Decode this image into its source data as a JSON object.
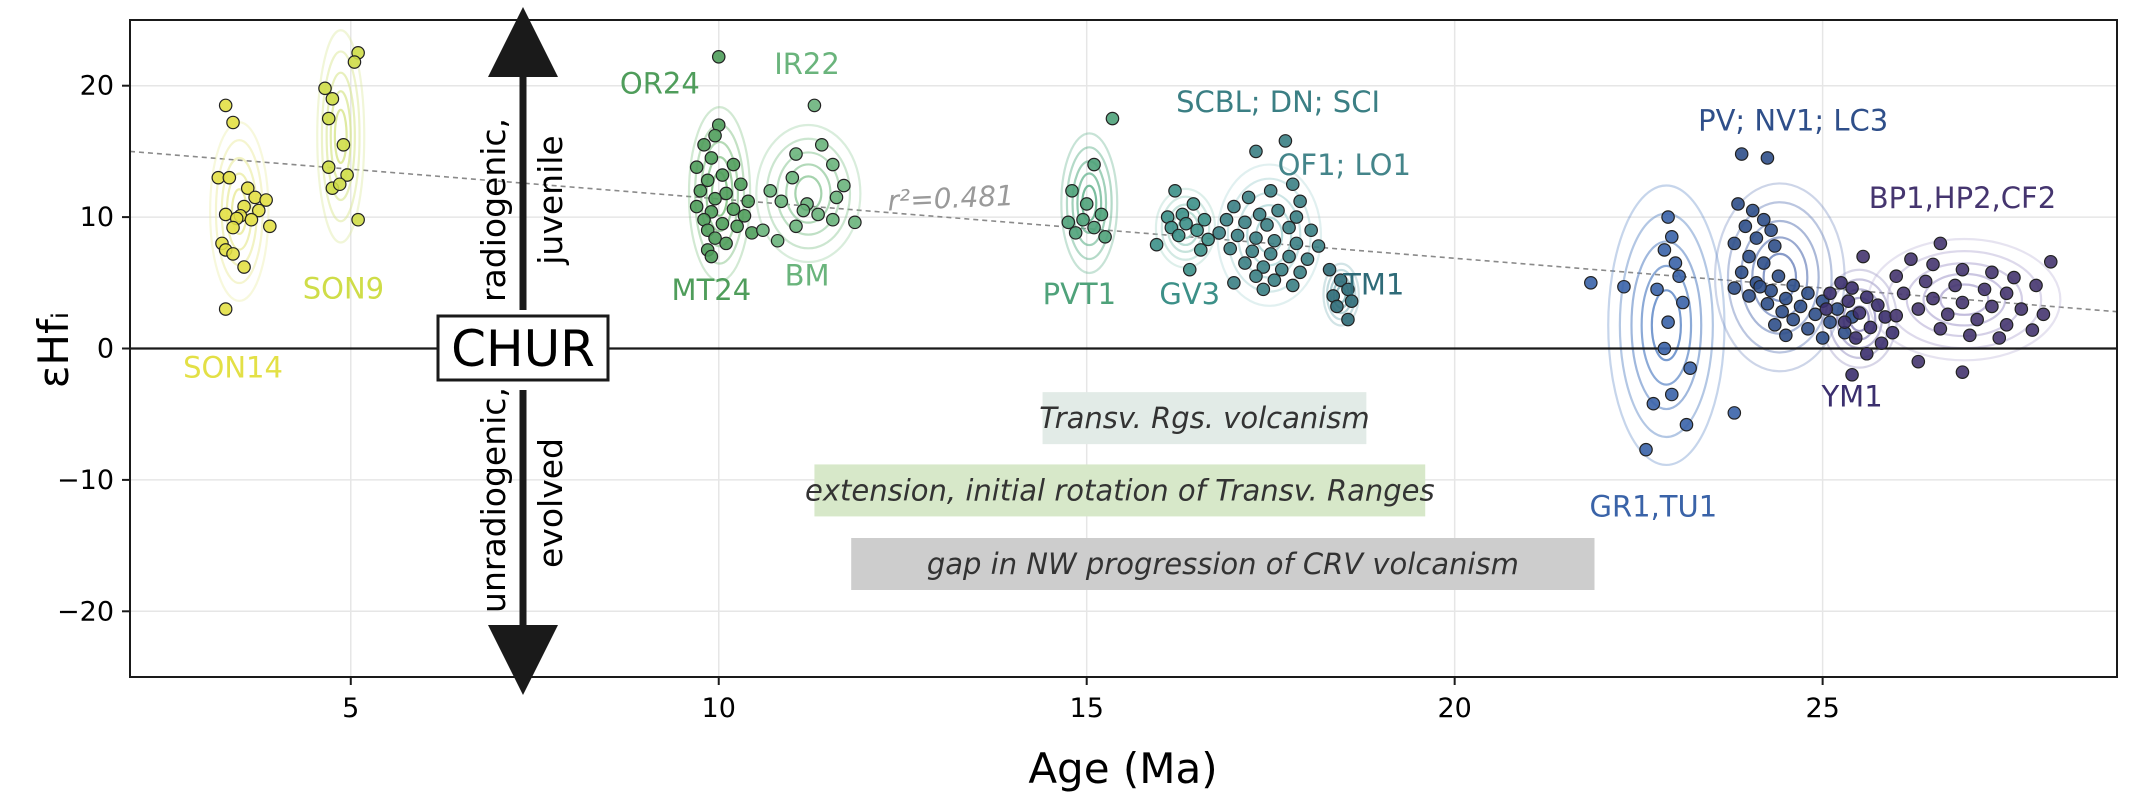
{
  "chart_data": {
    "type": "scatter",
    "xlabel": "Age (Ma)",
    "ylabel": "εHfᵢ",
    "xlim": [
      2,
      29
    ],
    "ylim": [
      -25,
      25
    ],
    "xticks": [
      5,
      10,
      15,
      20,
      25
    ],
    "yticks": [
      -20,
      -10,
      0,
      10,
      20
    ],
    "x_tick_labels": [
      "5",
      "10",
      "15",
      "20",
      "25"
    ],
    "y_tick_labels": [
      "−20",
      "−10",
      "0",
      "10",
      "20"
    ],
    "grid": true,
    "reference_line": {
      "label": "CHUR",
      "y": 0
    },
    "trend_line": {
      "label": "r²=0.481",
      "x": [
        2,
        29
      ],
      "y": [
        15.0,
        2.8
      ]
    },
    "arrow_labels": {
      "up_line1": "radiogenic,",
      "up_line2": "juvenile",
      "down_line1": "unradiogenic,",
      "down_line2": "evolved"
    },
    "annotations": [
      {
        "text": "Transv. Rgs. volcanism",
        "x_start": 14.4,
        "x_end": 18.8,
        "color": "#e2ebe7"
      },
      {
        "text": "extension, initial rotation of Transv. Ranges",
        "x_start": 11.3,
        "x_end": 19.6,
        "color": "#d7e8c9"
      },
      {
        "text": "gap in NW progression of CRV volcanism",
        "x_start": 11.8,
        "x_end": 21.9,
        "color": "#cdcdcd"
      }
    ],
    "series": [
      {
        "name": "SON14",
        "label_x": 3.4,
        "label_y": -2.2,
        "color": "#e3e046",
        "contour": "#e9ea9b",
        "points": [
          [
            3.3,
            18.5
          ],
          [
            3.4,
            17.2
          ],
          [
            3.2,
            13.0
          ],
          [
            3.35,
            13.0
          ],
          [
            3.6,
            12.2
          ],
          [
            3.7,
            11.5
          ],
          [
            3.85,
            11.3
          ],
          [
            3.55,
            10.8
          ],
          [
            3.75,
            10.5
          ],
          [
            3.3,
            10.2
          ],
          [
            3.5,
            10.1
          ],
          [
            3.45,
            9.9
          ],
          [
            3.65,
            9.8
          ],
          [
            3.9,
            9.3
          ],
          [
            3.4,
            9.2
          ],
          [
            3.25,
            8.0
          ],
          [
            3.3,
            7.5
          ],
          [
            3.4,
            7.2
          ],
          [
            3.55,
            6.2
          ],
          [
            3.3,
            3.0
          ]
        ]
      },
      {
        "name": "SON9",
        "label_x": 4.9,
        "label_y": 3.8,
        "color": "#cfdd48",
        "contour": "#d8e68e",
        "points": [
          [
            5.1,
            22.5
          ],
          [
            5.05,
            21.8
          ],
          [
            4.65,
            19.8
          ],
          [
            4.75,
            19.0
          ],
          [
            4.7,
            17.5
          ],
          [
            4.9,
            15.5
          ],
          [
            4.7,
            13.8
          ],
          [
            4.95,
            13.2
          ],
          [
            4.75,
            12.2
          ],
          [
            4.85,
            12.5
          ],
          [
            5.1,
            9.8
          ]
        ]
      },
      {
        "name": "OR24",
        "label_x": 9.2,
        "label_y": 19.4,
        "color": "#4f9d5b",
        "contour": "#7fc081",
        "points": [
          [
            10.0,
            22.2
          ],
          [
            10.0,
            17.0
          ],
          [
            9.95,
            16.2
          ],
          [
            9.8,
            15.5
          ],
          [
            9.9,
            14.5
          ],
          [
            10.2,
            14.0
          ],
          [
            9.7,
            13.8
          ],
          [
            10.05,
            13.2
          ],
          [
            9.85,
            12.8
          ],
          [
            10.3,
            12.5
          ],
          [
            9.75,
            12.0
          ],
          [
            10.1,
            11.8
          ],
          [
            9.95,
            11.4
          ],
          [
            10.4,
            11.2
          ],
          [
            9.7,
            10.8
          ],
          [
            10.2,
            10.6
          ],
          [
            9.9,
            10.4
          ],
          [
            10.35,
            10.1
          ],
          [
            9.8,
            9.8
          ],
          [
            10.05,
            9.5
          ],
          [
            10.25,
            9.3
          ],
          [
            9.85,
            9.0
          ],
          [
            10.45,
            8.8
          ],
          [
            9.95,
            8.4
          ],
          [
            10.1,
            8.0
          ],
          [
            9.85,
            7.5
          ],
          [
            9.9,
            7.0
          ]
        ]
      },
      {
        "name": "IR22",
        "label_x": 11.2,
        "label_y": 20.9,
        "color": "#6ab47c",
        "contour": "#93ca9c",
        "points": [
          [
            11.3,
            18.5
          ],
          [
            11.4,
            15.5
          ],
          [
            11.05,
            14.8
          ],
          [
            11.55,
            14.0
          ],
          [
            11.0,
            13.0
          ],
          [
            11.7,
            12.4
          ],
          [
            10.7,
            12.0
          ],
          [
            11.6,
            11.5
          ],
          [
            11.2,
            11.0
          ],
          [
            10.85,
            11.2
          ],
          [
            11.15,
            10.5
          ],
          [
            11.35,
            10.2
          ],
          [
            11.55,
            9.8
          ],
          [
            11.85,
            9.6
          ],
          [
            11.05,
            9.3
          ],
          [
            10.6,
            9.0
          ],
          [
            10.8,
            8.2
          ]
        ]
      },
      {
        "name": "MT24",
        "label_x": 9.9,
        "label_y": 3.7,
        "color": "#4f9d5b",
        "contour": "#7fc081",
        "points": []
      },
      {
        "name": "BM",
        "label_x": 11.2,
        "label_y": 4.8,
        "color": "#6ab47c",
        "contour": "#93ca9c",
        "points": []
      },
      {
        "name": "PVT1",
        "label_x": 14.9,
        "label_y": 3.4,
        "color": "#4fa27a",
        "contour": "#5fb08a",
        "points": [
          [
            15.35,
            17.5
          ],
          [
            15.1,
            14.0
          ],
          [
            14.8,
            12.0
          ],
          [
            15.0,
            11.0
          ],
          [
            15.2,
            10.2
          ],
          [
            14.95,
            9.8
          ],
          [
            14.75,
            9.6
          ],
          [
            15.1,
            9.2
          ],
          [
            14.85,
            8.8
          ],
          [
            15.25,
            8.5
          ]
        ]
      },
      {
        "name": "GV3",
        "label_x": 16.4,
        "label_y": 3.4,
        "color": "#3c9088",
        "contour": "#9fd0c4",
        "points": [
          [
            16.2,
            12.0
          ],
          [
            16.45,
            11.0
          ],
          [
            16.3,
            10.2
          ],
          [
            16.1,
            10.0
          ],
          [
            16.6,
            9.8
          ],
          [
            16.35,
            9.5
          ],
          [
            16.15,
            9.2
          ],
          [
            16.5,
            9.0
          ],
          [
            16.25,
            8.6
          ],
          [
            16.65,
            8.3
          ],
          [
            15.95,
            7.9
          ],
          [
            16.55,
            7.5
          ],
          [
            16.4,
            6.0
          ]
        ]
      },
      {
        "name": "SCBL; DN; SCI",
        "label_x": 17.6,
        "label_y": 18.0,
        "color": "#3b7f84",
        "contour": "#a8d3d3",
        "points": [
          [
            17.3,
            15.0
          ],
          [
            17.7,
            15.8
          ],
          [
            17.8,
            12.5
          ],
          [
            17.5,
            12.0
          ],
          [
            17.2,
            11.5
          ],
          [
            17.9,
            11.2
          ],
          [
            17.0,
            10.8
          ],
          [
            17.6,
            10.5
          ],
          [
            17.35,
            10.2
          ],
          [
            17.85,
            10.0
          ],
          [
            16.9,
            9.8
          ],
          [
            17.15,
            9.6
          ],
          [
            17.45,
            9.4
          ],
          [
            17.75,
            9.2
          ],
          [
            18.05,
            9.0
          ],
          [
            16.8,
            8.8
          ],
          [
            17.05,
            8.6
          ],
          [
            17.3,
            8.4
          ],
          [
            17.55,
            8.2
          ],
          [
            17.85,
            8.0
          ],
          [
            18.15,
            7.8
          ],
          [
            16.95,
            7.6
          ],
          [
            17.25,
            7.4
          ],
          [
            17.5,
            7.2
          ],
          [
            17.75,
            7.0
          ],
          [
            18.0,
            6.8
          ],
          [
            17.15,
            6.5
          ],
          [
            17.4,
            6.2
          ],
          [
            17.65,
            6.0
          ],
          [
            17.9,
            5.8
          ],
          [
            17.3,
            5.5
          ],
          [
            17.55,
            5.2
          ],
          [
            17.8,
            4.8
          ],
          [
            17.0,
            5.0
          ],
          [
            17.4,
            4.5
          ]
        ]
      },
      {
        "name": "OF1; LO1",
        "label_x": 18.5,
        "label_y": 13.2,
        "color": "#44858a",
        "contour": "#a8d3d3",
        "points": []
      },
      {
        "name": "TM1",
        "label_x": 18.9,
        "label_y": 4.1,
        "color": "#2f6b78",
        "contour": "#7fb3b8",
        "points": [
          [
            18.3,
            6.0
          ],
          [
            18.45,
            5.2
          ],
          [
            18.55,
            4.5
          ],
          [
            18.35,
            4.0
          ],
          [
            18.6,
            3.6
          ],
          [
            18.4,
            3.2
          ],
          [
            18.55,
            2.2
          ]
        ]
      },
      {
        "name": "PV; NV1; LC3",
        "label_x": 24.6,
        "label_y": 16.6,
        "color": "#2f4f8a",
        "contour": "#6f86bd",
        "points": [
          [
            23.9,
            14.8
          ],
          [
            24.25,
            14.5
          ],
          [
            23.85,
            11.0
          ],
          [
            24.05,
            10.5
          ],
          [
            24.2,
            9.8
          ],
          [
            23.95,
            9.3
          ],
          [
            24.3,
            9.0
          ],
          [
            24.1,
            8.4
          ],
          [
            23.8,
            8.0
          ],
          [
            24.35,
            7.8
          ],
          [
            24.0,
            7.0
          ],
          [
            24.2,
            6.5
          ],
          [
            23.9,
            5.8
          ],
          [
            24.4,
            5.5
          ],
          [
            24.1,
            5.0
          ],
          [
            24.6,
            4.8
          ],
          [
            24.3,
            4.4
          ],
          [
            24.8,
            4.2
          ],
          [
            24.0,
            4.0
          ],
          [
            24.5,
            3.8
          ],
          [
            25.0,
            3.6
          ],
          [
            24.25,
            3.4
          ],
          [
            24.7,
            3.2
          ],
          [
            25.2,
            3.0
          ],
          [
            24.45,
            2.8
          ],
          [
            24.9,
            2.6
          ],
          [
            25.4,
            2.4
          ],
          [
            24.6,
            2.2
          ],
          [
            25.1,
            2.0
          ],
          [
            24.35,
            1.8
          ],
          [
            24.8,
            1.5
          ],
          [
            25.3,
            1.2
          ],
          [
            24.5,
            1.0
          ],
          [
            25.0,
            0.8
          ],
          [
            23.8,
            4.6
          ],
          [
            24.15,
            4.7
          ]
        ]
      },
      {
        "name": "GR1,TU1",
        "label_x": 22.7,
        "label_y": -12.8,
        "color": "#3a63a8",
        "contour": "#5d87c6",
        "points": [
          [
            22.9,
            10.0
          ],
          [
            22.95,
            8.5
          ],
          [
            22.85,
            7.5
          ],
          [
            23.0,
            6.5
          ],
          [
            23.05,
            5.5
          ],
          [
            21.85,
            5.0
          ],
          [
            22.3,
            4.7
          ],
          [
            22.75,
            4.5
          ],
          [
            23.1,
            3.5
          ],
          [
            22.9,
            2.0
          ],
          [
            22.85,
            0.0
          ],
          [
            23.2,
            -1.5
          ],
          [
            22.95,
            -3.5
          ],
          [
            23.15,
            -5.8
          ],
          [
            22.7,
            -4.2
          ],
          [
            23.8,
            -4.9
          ],
          [
            22.6,
            -7.7
          ]
        ]
      },
      {
        "name": "YM1",
        "label_x": 25.4,
        "label_y": -4.4,
        "color": "#3b2f6e",
        "contour": "#8c86bb",
        "points": [
          [
            25.25,
            5.0
          ],
          [
            25.4,
            4.6
          ],
          [
            25.1,
            4.2
          ],
          [
            25.6,
            3.9
          ],
          [
            25.35,
            3.6
          ],
          [
            25.75,
            3.3
          ],
          [
            25.05,
            3.0
          ],
          [
            25.5,
            2.7
          ],
          [
            25.85,
            2.4
          ],
          [
            25.3,
            2.0
          ],
          [
            25.65,
            1.6
          ],
          [
            25.95,
            1.2
          ],
          [
            25.45,
            0.8
          ],
          [
            25.8,
            0.4
          ],
          [
            25.6,
            -0.4
          ],
          [
            25.4,
            -2.0
          ]
        ]
      },
      {
        "name": "BP1,HP2,CF2",
        "label_x": 26.9,
        "label_y": 10.7,
        "color": "#45356f",
        "contour": "#b6aed5",
        "points": [
          [
            26.6,
            8.0
          ],
          [
            26.2,
            6.8
          ],
          [
            26.5,
            6.4
          ],
          [
            26.9,
            6.0
          ],
          [
            27.3,
            5.8
          ],
          [
            27.6,
            5.4
          ],
          [
            26.0,
            5.5
          ],
          [
            26.4,
            5.1
          ],
          [
            26.8,
            4.8
          ],
          [
            27.2,
            4.5
          ],
          [
            27.5,
            4.2
          ],
          [
            27.9,
            4.8
          ],
          [
            26.1,
            4.2
          ],
          [
            26.5,
            3.8
          ],
          [
            26.9,
            3.5
          ],
          [
            27.3,
            3.2
          ],
          [
            27.7,
            3.0
          ],
          [
            28.0,
            2.6
          ],
          [
            26.3,
            3.0
          ],
          [
            26.7,
            2.6
          ],
          [
            27.1,
            2.2
          ],
          [
            27.5,
            1.8
          ],
          [
            27.85,
            1.4
          ],
          [
            26.0,
            2.5
          ],
          [
            26.6,
            1.5
          ],
          [
            27.4,
            0.8
          ],
          [
            27.0,
            1.0
          ],
          [
            28.1,
            6.6
          ],
          [
            25.55,
            7.0
          ],
          [
            26.9,
            -1.8
          ],
          [
            26.3,
            -1.0
          ]
        ]
      }
    ]
  }
}
